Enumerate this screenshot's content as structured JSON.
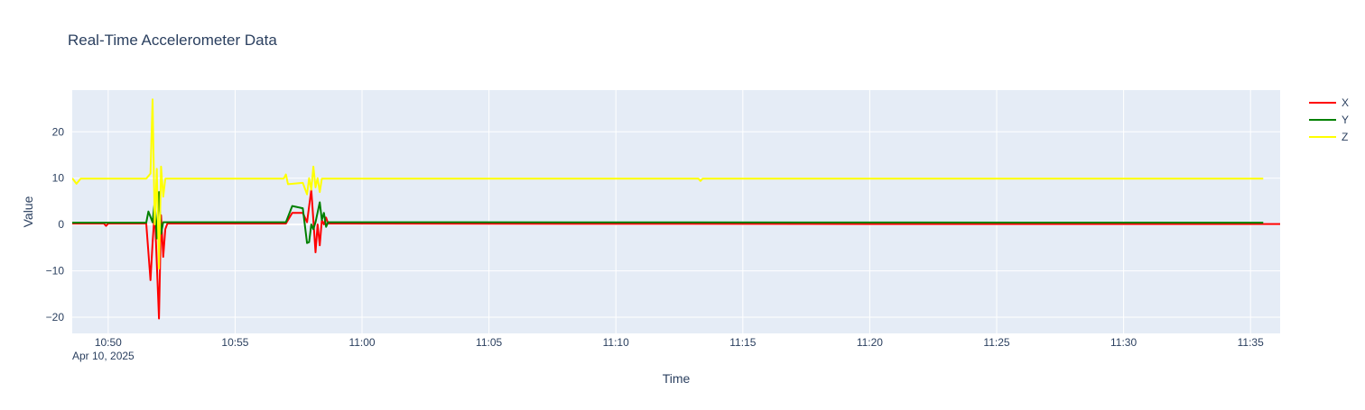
{
  "chart_data": {
    "type": "line",
    "title": "Real-Time Accelerometer Data",
    "xlabel": "Time",
    "ylabel": "Value",
    "date_label": "Apr 10, 2025",
    "x_ticks": [
      "10:50",
      "10:55",
      "11:00",
      "11:05",
      "11:10",
      "11:15",
      "11:20",
      "11:25",
      "11:30",
      "11:35"
    ],
    "y_ticks": [
      20,
      10,
      0,
      -10,
      -20
    ],
    "xlim": [
      "10:48:35",
      "11:36:10"
    ],
    "ylim": [
      -23.5,
      29
    ],
    "grid": true,
    "legend_position": "right",
    "plot_background": "#e5ecf6",
    "series": [
      {
        "name": "X",
        "color": "#ff0000",
        "points": [
          [
            "10:48:35",
            0.2
          ],
          [
            "10:49:50",
            0.2
          ],
          [
            "10:49:55",
            -0.3
          ],
          [
            "10:50:00",
            0.2
          ],
          [
            "10:51:30",
            0.2
          ],
          [
            "10:51:40",
            -12.0
          ],
          [
            "10:51:45",
            -4.0
          ],
          [
            "10:51:50",
            3.0
          ],
          [
            "10:52:00",
            -20.3
          ],
          [
            "10:52:05",
            2.0
          ],
          [
            "10:52:10",
            -7.0
          ],
          [
            "10:52:15",
            -1.0
          ],
          [
            "10:52:20",
            0.2
          ],
          [
            "10:57:00",
            0.2
          ],
          [
            "10:57:15",
            2.5
          ],
          [
            "10:57:40",
            2.5
          ],
          [
            "10:57:50",
            0.5
          ],
          [
            "10:58:00",
            7.5
          ],
          [
            "10:58:05",
            1.0
          ],
          [
            "10:58:10",
            -6.0
          ],
          [
            "10:58:15",
            0.0
          ],
          [
            "10:58:20",
            -4.5
          ],
          [
            "10:58:25",
            1.0
          ],
          [
            "10:58:30",
            0.0
          ],
          [
            "10:58:35",
            1.5
          ],
          [
            "10:58:40",
            0.2
          ],
          [
            "11:20:00",
            0.1
          ],
          [
            "11:36:10",
            0.1
          ]
        ]
      },
      {
        "name": "Y",
        "color": "#008000",
        "points": [
          [
            "10:48:35",
            0.4
          ],
          [
            "10:51:30",
            0.4
          ],
          [
            "10:51:35",
            2.8
          ],
          [
            "10:51:45",
            0.5
          ],
          [
            "10:51:50",
            5.0
          ],
          [
            "10:51:55",
            -3.0
          ],
          [
            "10:52:00",
            7.0
          ],
          [
            "10:52:05",
            -2.0
          ],
          [
            "10:52:10",
            0.5
          ],
          [
            "10:57:00",
            0.5
          ],
          [
            "10:57:15",
            4.0
          ],
          [
            "10:57:40",
            3.5
          ],
          [
            "10:57:50",
            -4.0
          ],
          [
            "10:57:55",
            -3.8
          ],
          [
            "10:58:00",
            0.0
          ],
          [
            "10:58:05",
            -1.0
          ],
          [
            "10:58:10",
            0.5
          ],
          [
            "10:58:20",
            4.8
          ],
          [
            "10:58:25",
            1.0
          ],
          [
            "10:58:30",
            2.5
          ],
          [
            "10:58:35",
            -0.5
          ],
          [
            "10:58:40",
            0.5
          ],
          [
            "11:35:30",
            0.4
          ]
        ]
      },
      {
        "name": "Z",
        "color": "#ffff00",
        "points": [
          [
            "10:48:35",
            10.0
          ],
          [
            "10:48:45",
            8.8
          ],
          [
            "10:48:55",
            9.9
          ],
          [
            "10:51:30",
            9.9
          ],
          [
            "10:51:40",
            11.0
          ],
          [
            "10:51:45",
            27.0
          ],
          [
            "10:51:50",
            0.0
          ],
          [
            "10:51:55",
            12.0
          ],
          [
            "10:52:00",
            -9.5
          ],
          [
            "10:52:05",
            12.5
          ],
          [
            "10:52:10",
            6.0
          ],
          [
            "10:52:15",
            9.9
          ],
          [
            "10:56:55",
            9.9
          ],
          [
            "10:57:00",
            10.8
          ],
          [
            "10:57:05",
            8.7
          ],
          [
            "10:57:40",
            9.0
          ],
          [
            "10:57:50",
            6.5
          ],
          [
            "10:57:55",
            10.0
          ],
          [
            "10:58:00",
            7.5
          ],
          [
            "10:58:05",
            12.5
          ],
          [
            "10:58:10",
            8.0
          ],
          [
            "10:58:15",
            10.0
          ],
          [
            "10:58:20",
            7.0
          ],
          [
            "10:58:25",
            9.9
          ],
          [
            "11:13:15",
            9.9
          ],
          [
            "11:13:20",
            9.4
          ],
          [
            "11:13:25",
            9.9
          ],
          [
            "11:35:30",
            9.9
          ]
        ]
      }
    ]
  }
}
